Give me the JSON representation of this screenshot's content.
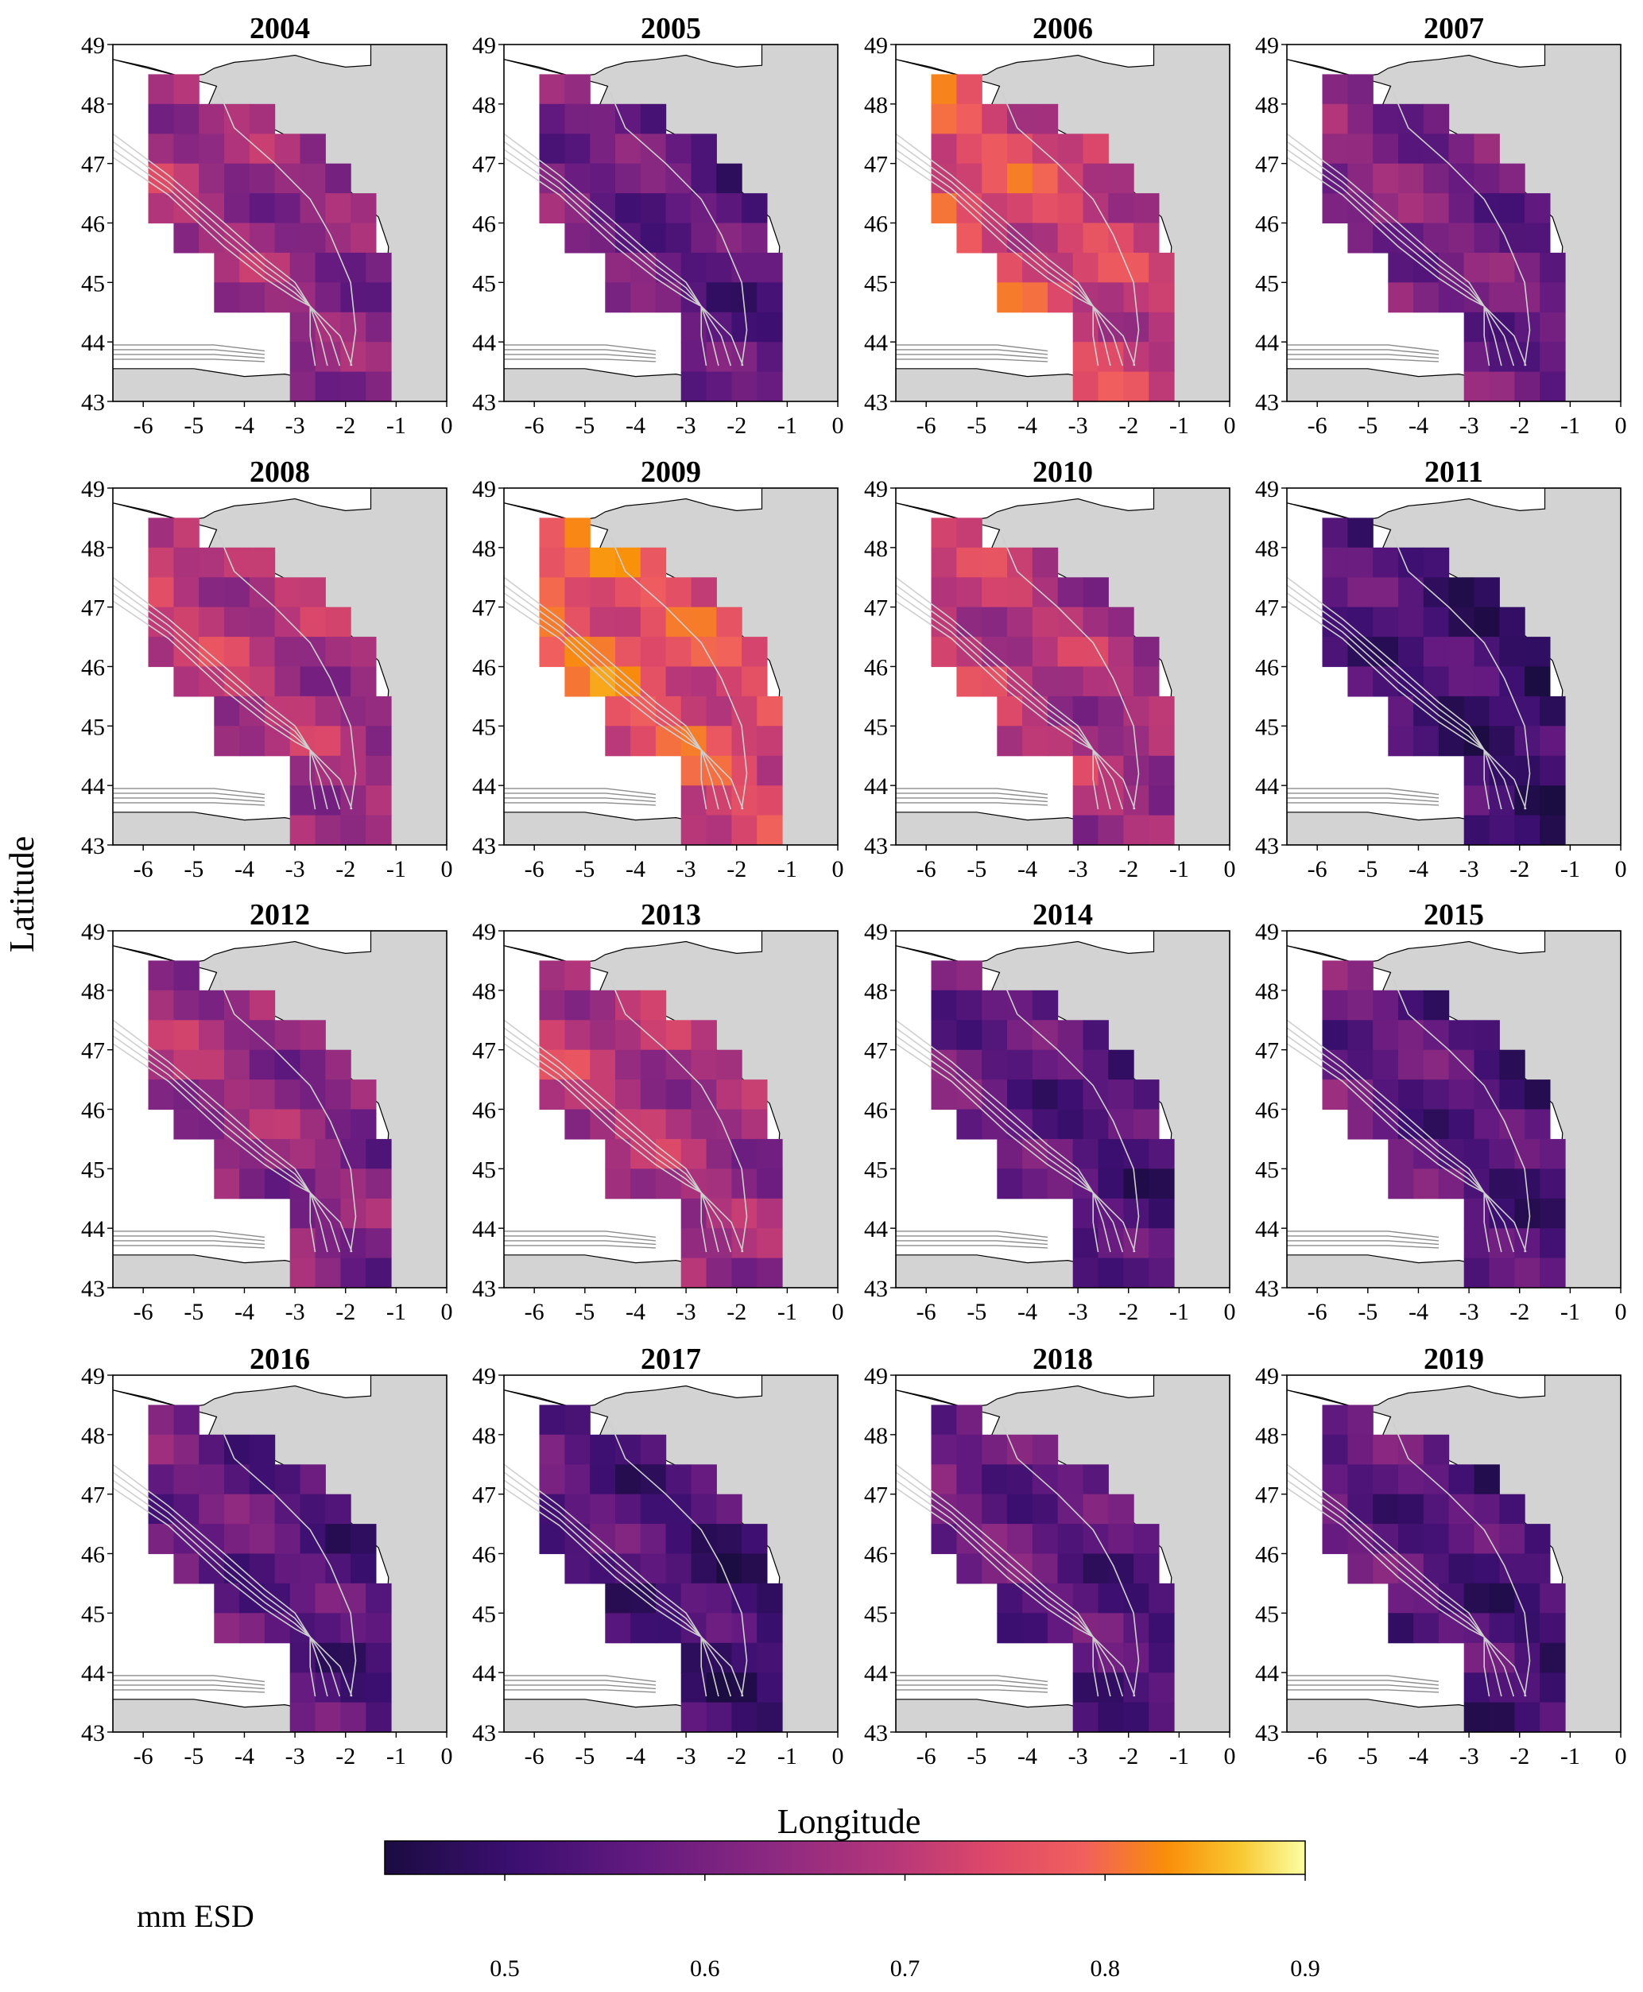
{
  "figure": {
    "xlabel": "Longitude",
    "ylabel": "Latitude",
    "x_ticks": [
      "-6",
      "-5",
      "-4",
      "-3",
      "-2",
      "-1",
      "0"
    ],
    "y_ticks": [
      "43",
      "44",
      "45",
      "46",
      "47",
      "48",
      "49"
    ],
    "colorbar": {
      "label": "mm ESD",
      "ticks": [
        "0.5",
        "0.6",
        "0.7",
        "0.8",
        "0.9"
      ],
      "range": [
        0.44,
        0.9
      ],
      "colormap": "inferno-like"
    },
    "panels": [
      {
        "year": "2004",
        "level": 0.64
      },
      {
        "year": "2005",
        "level": 0.57
      },
      {
        "year": "2006",
        "level": 0.73
      },
      {
        "year": "2007",
        "level": 0.6
      },
      {
        "year": "2008",
        "level": 0.68
      },
      {
        "year": "2009",
        "level": 0.76
      },
      {
        "year": "2010",
        "level": 0.68
      },
      {
        "year": "2011",
        "level": 0.52
      },
      {
        "year": "2012",
        "level": 0.64
      },
      {
        "year": "2013",
        "level": 0.67
      },
      {
        "year": "2014",
        "level": 0.55
      },
      {
        "year": "2015",
        "level": 0.55
      },
      {
        "year": "2016",
        "level": 0.56
      },
      {
        "year": "2017",
        "level": 0.53
      },
      {
        "year": "2018",
        "level": 0.56
      },
      {
        "year": "2019",
        "level": 0.54
      }
    ]
  },
  "colors": {
    "land": "#d3d3d3",
    "coastline": "#000000",
    "isobath": "#cfcfcf",
    "isobath_off_grid": "#8c8c8c",
    "frame": "#000000"
  }
}
